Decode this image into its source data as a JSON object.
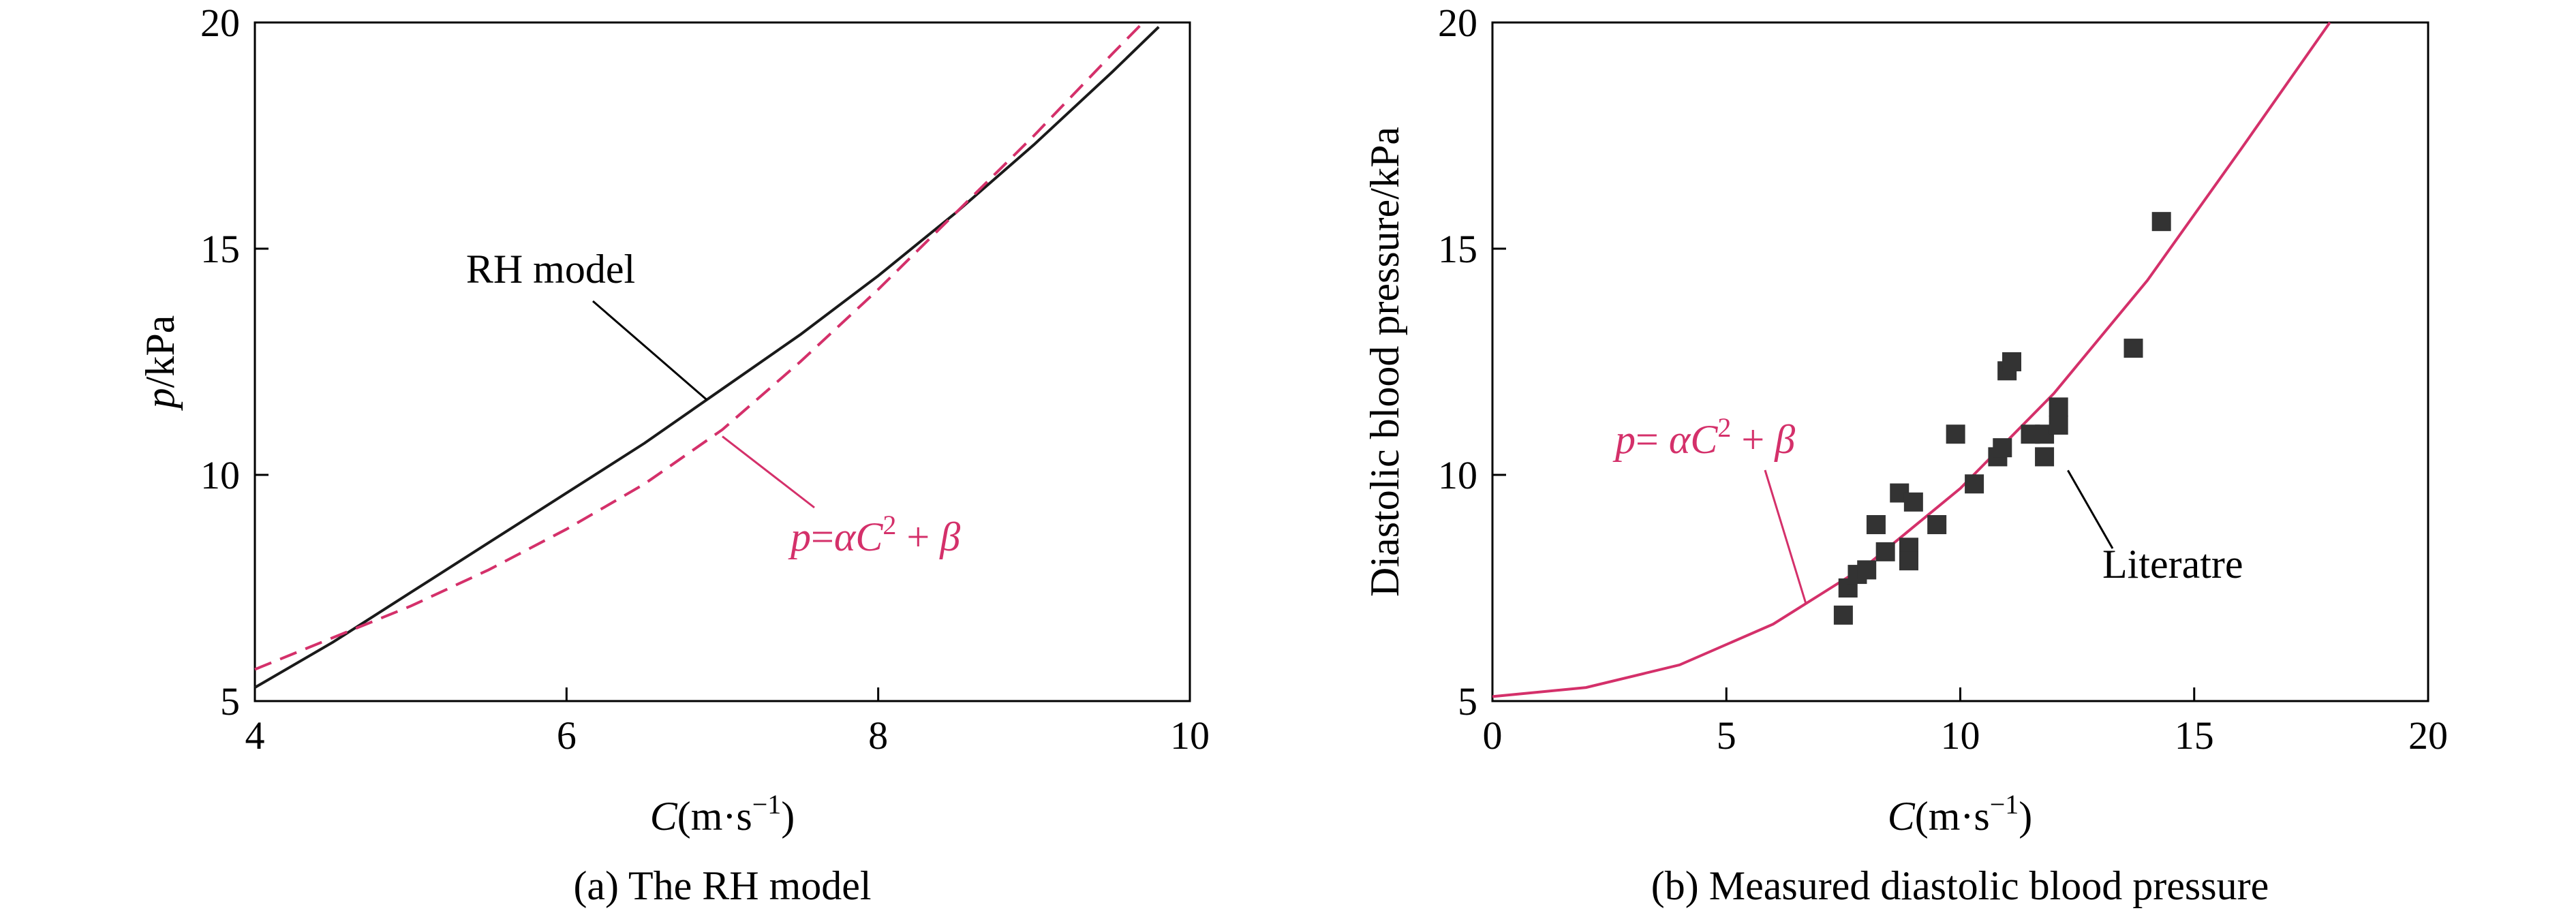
{
  "colors": {
    "axis": "#000000",
    "rh_curve": "#1a1a1a",
    "fit_curve": "#d4306a",
    "markers": "#333333"
  },
  "chart_data": [
    {
      "type": "line",
      "caption": "(a) The RH model",
      "xlabel": {
        "var": "C",
        "unit": "(m·s",
        "sup": "−1",
        "close": ")"
      },
      "ylabel": {
        "var": "p",
        "unit": "/kPa"
      },
      "xlim": [
        4,
        10
      ],
      "ylim": [
        5,
        20
      ],
      "xticks": [
        4,
        6,
        8,
        10
      ],
      "yticks": [
        5,
        10,
        15,
        20
      ],
      "series": [
        {
          "name": "RH model",
          "style": "solid",
          "x": [
            4.0,
            4.5,
            5.0,
            5.5,
            6.0,
            6.5,
            7.0,
            7.5,
            8.0,
            8.5,
            9.0,
            9.5,
            9.8
          ],
          "y": [
            5.3,
            6.3,
            7.4,
            8.5,
            9.6,
            10.7,
            11.9,
            13.1,
            14.4,
            15.8,
            17.3,
            18.9,
            19.9
          ]
        },
        {
          "name": "p=αC² + β",
          "style": "dashed",
          "x": [
            4.0,
            4.5,
            5.0,
            5.5,
            6.0,
            6.5,
            7.0,
            7.5,
            8.0,
            8.5,
            9.0,
            9.5,
            9.7
          ],
          "y": [
            5.7,
            6.4,
            7.1,
            7.9,
            8.8,
            9.8,
            11.0,
            12.5,
            14.1,
            15.8,
            17.5,
            19.3,
            20.0
          ]
        }
      ],
      "annotations": [
        {
          "text": "RH model",
          "series": 0
        },
        {
          "text_prefix": "p",
          "text_eq": "=",
          "text_alpha": "α",
          "text_c": "C",
          "text_sup": "2",
          "text_rest": " + ",
          "text_beta": "β",
          "series": 1
        }
      ]
    },
    {
      "type": "scatter",
      "caption": "(b) Measured diastolic blood pressure",
      "xlabel": {
        "var": "C",
        "unit": "(m·s",
        "sup": "−1",
        "close": ")"
      },
      "ylabel": {
        "text": "Diastolic blood pressure/kPa"
      },
      "xlim": [
        0,
        20
      ],
      "ylim": [
        5,
        20
      ],
      "xticks": [
        0,
        5,
        10,
        15,
        20
      ],
      "yticks": [
        5,
        10,
        15,
        20
      ],
      "fit": {
        "name": "p= αC² + β",
        "x": [
          0,
          2,
          4,
          6,
          8,
          10,
          12,
          14,
          16,
          17.9
        ],
        "y": [
          5.1,
          5.3,
          5.8,
          6.7,
          8.0,
          9.7,
          11.8,
          14.3,
          17.2,
          20.0
        ]
      },
      "points": {
        "name": "Literatre",
        "x": [
          7.5,
          7.6,
          7.8,
          8.0,
          8.2,
          8.4,
          8.7,
          8.9,
          8.9,
          9.0,
          9.5,
          9.9,
          10.3,
          10.8,
          10.9,
          11.0,
          11.1,
          11.5,
          11.8,
          11.8,
          12.1,
          12.1,
          13.7,
          14.3
        ],
        "y": [
          6.9,
          7.5,
          7.8,
          7.9,
          8.9,
          8.3,
          9.6,
          8.4,
          8.1,
          9.4,
          8.9,
          10.9,
          9.8,
          10.4,
          10.6,
          12.3,
          12.5,
          10.9,
          10.9,
          10.4,
          11.5,
          11.1,
          12.8,
          15.6
        ]
      },
      "annotations": [
        {
          "text_prefix": "p",
          "text_eq": "= ",
          "text_alpha": "α",
          "text_c": "C",
          "text_sup": "2",
          "text_rest": " + ",
          "text_beta": "β"
        },
        {
          "text": "Literatre"
        }
      ]
    }
  ]
}
